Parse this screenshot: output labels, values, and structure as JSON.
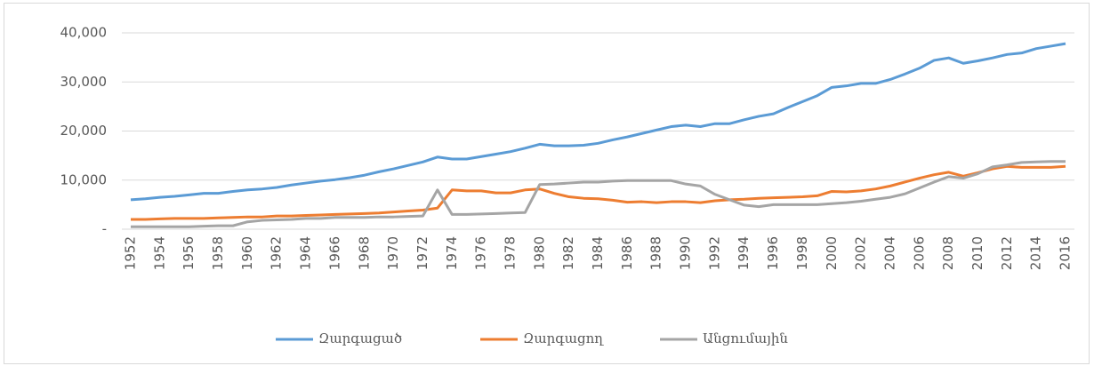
{
  "chart_data": {
    "type": "line",
    "x": [
      1952,
      1953,
      1954,
      1955,
      1956,
      1957,
      1958,
      1959,
      1960,
      1961,
      1962,
      1963,
      1964,
      1965,
      1966,
      1967,
      1968,
      1969,
      1970,
      1971,
      1972,
      1973,
      1974,
      1975,
      1976,
      1977,
      1978,
      1979,
      1980,
      1981,
      1982,
      1983,
      1984,
      1985,
      1986,
      1987,
      1988,
      1989,
      1990,
      1991,
      1992,
      1993,
      1994,
      1995,
      1996,
      1997,
      1998,
      1999,
      2000,
      2001,
      2002,
      2003,
      2004,
      2005,
      2006,
      2007,
      2008,
      2009,
      2010,
      2011,
      2012,
      2013,
      2014,
      2015,
      2016
    ],
    "xlim": [
      1952,
      2016
    ],
    "xticks": [
      1952,
      1954,
      1956,
      1958,
      1960,
      1962,
      1964,
      1966,
      1968,
      1970,
      1972,
      1974,
      1976,
      1978,
      1980,
      1982,
      1984,
      1986,
      1988,
      1990,
      1992,
      1994,
      1996,
      1998,
      2000,
      2002,
      2004,
      2006,
      2008,
      2010,
      2012,
      2014,
      2016
    ],
    "ylim": [
      0,
      40000
    ],
    "yticks": [
      {
        "value": 0,
        "label": "-"
      },
      {
        "value": 10000,
        "label": "10,000"
      },
      {
        "value": 20000,
        "label": "20,000"
      },
      {
        "value": 30000,
        "label": "30,000"
      },
      {
        "value": 40000,
        "label": "40,000"
      }
    ],
    "grid": true,
    "legend": "bottom",
    "series": [
      {
        "name": "Զարգացած",
        "color": "#5b9bd5",
        "values": [
          6000,
          6200,
          6500,
          6700,
          7000,
          7300,
          7300,
          7700,
          8000,
          8200,
          8500,
          9000,
          9400,
          9800,
          10100,
          10500,
          11000,
          11700,
          12300,
          13000,
          13700,
          14700,
          14300,
          14300,
          14800,
          15300,
          15800,
          16500,
          17300,
          17000,
          17000,
          17100,
          17500,
          18200,
          18800,
          19500,
          20200,
          20900,
          21200,
          20900,
          21500,
          21500,
          22300,
          23000,
          23500,
          24800,
          26000,
          27200,
          28900,
          29200,
          29700,
          29700,
          30500,
          31600,
          32800,
          34400,
          34900,
          33800,
          34300,
          34900,
          35600,
          35900,
          36800,
          37300,
          37800
        ]
      },
      {
        "name": "Զարգացող",
        "color": "#ed7d31",
        "values": [
          2000,
          2000,
          2100,
          2200,
          2200,
          2200,
          2300,
          2400,
          2500,
          2500,
          2700,
          2700,
          2800,
          2900,
          3000,
          3100,
          3200,
          3300,
          3500,
          3700,
          3900,
          4300,
          8000,
          7800,
          7800,
          7400,
          7400,
          8000,
          8200,
          7300,
          6600,
          6300,
          6200,
          5900,
          5500,
          5600,
          5400,
          5600,
          5600,
          5400,
          5800,
          6000,
          6100,
          6300,
          6400,
          6500,
          6600,
          6800,
          7700,
          7600,
          7800,
          8200,
          8800,
          9600,
          10400,
          11100,
          11600,
          10800,
          11500,
          12300,
          12800,
          12600,
          12600,
          12600,
          12800
        ]
      },
      {
        "name": "Անցումային",
        "color": "#a5a5a5",
        "values": [
          500,
          500,
          500,
          500,
          500,
          600,
          700,
          700,
          1500,
          1800,
          1900,
          2000,
          2200,
          2200,
          2400,
          2400,
          2400,
          2500,
          2500,
          2600,
          2700,
          8000,
          3000,
          3000,
          3100,
          3200,
          3300,
          3400,
          9100,
          9200,
          9400,
          9600,
          9600,
          9800,
          9900,
          9900,
          9900,
          9900,
          9200,
          8800,
          7100,
          6000,
          4900,
          4600,
          5000,
          5000,
          5000,
          5000,
          5200,
          5400,
          5700,
          6100,
          6500,
          7200,
          8400,
          9600,
          10700,
          10400,
          11300,
          12700,
          13100,
          13600,
          13700,
          13800,
          13800
        ]
      }
    ]
  }
}
